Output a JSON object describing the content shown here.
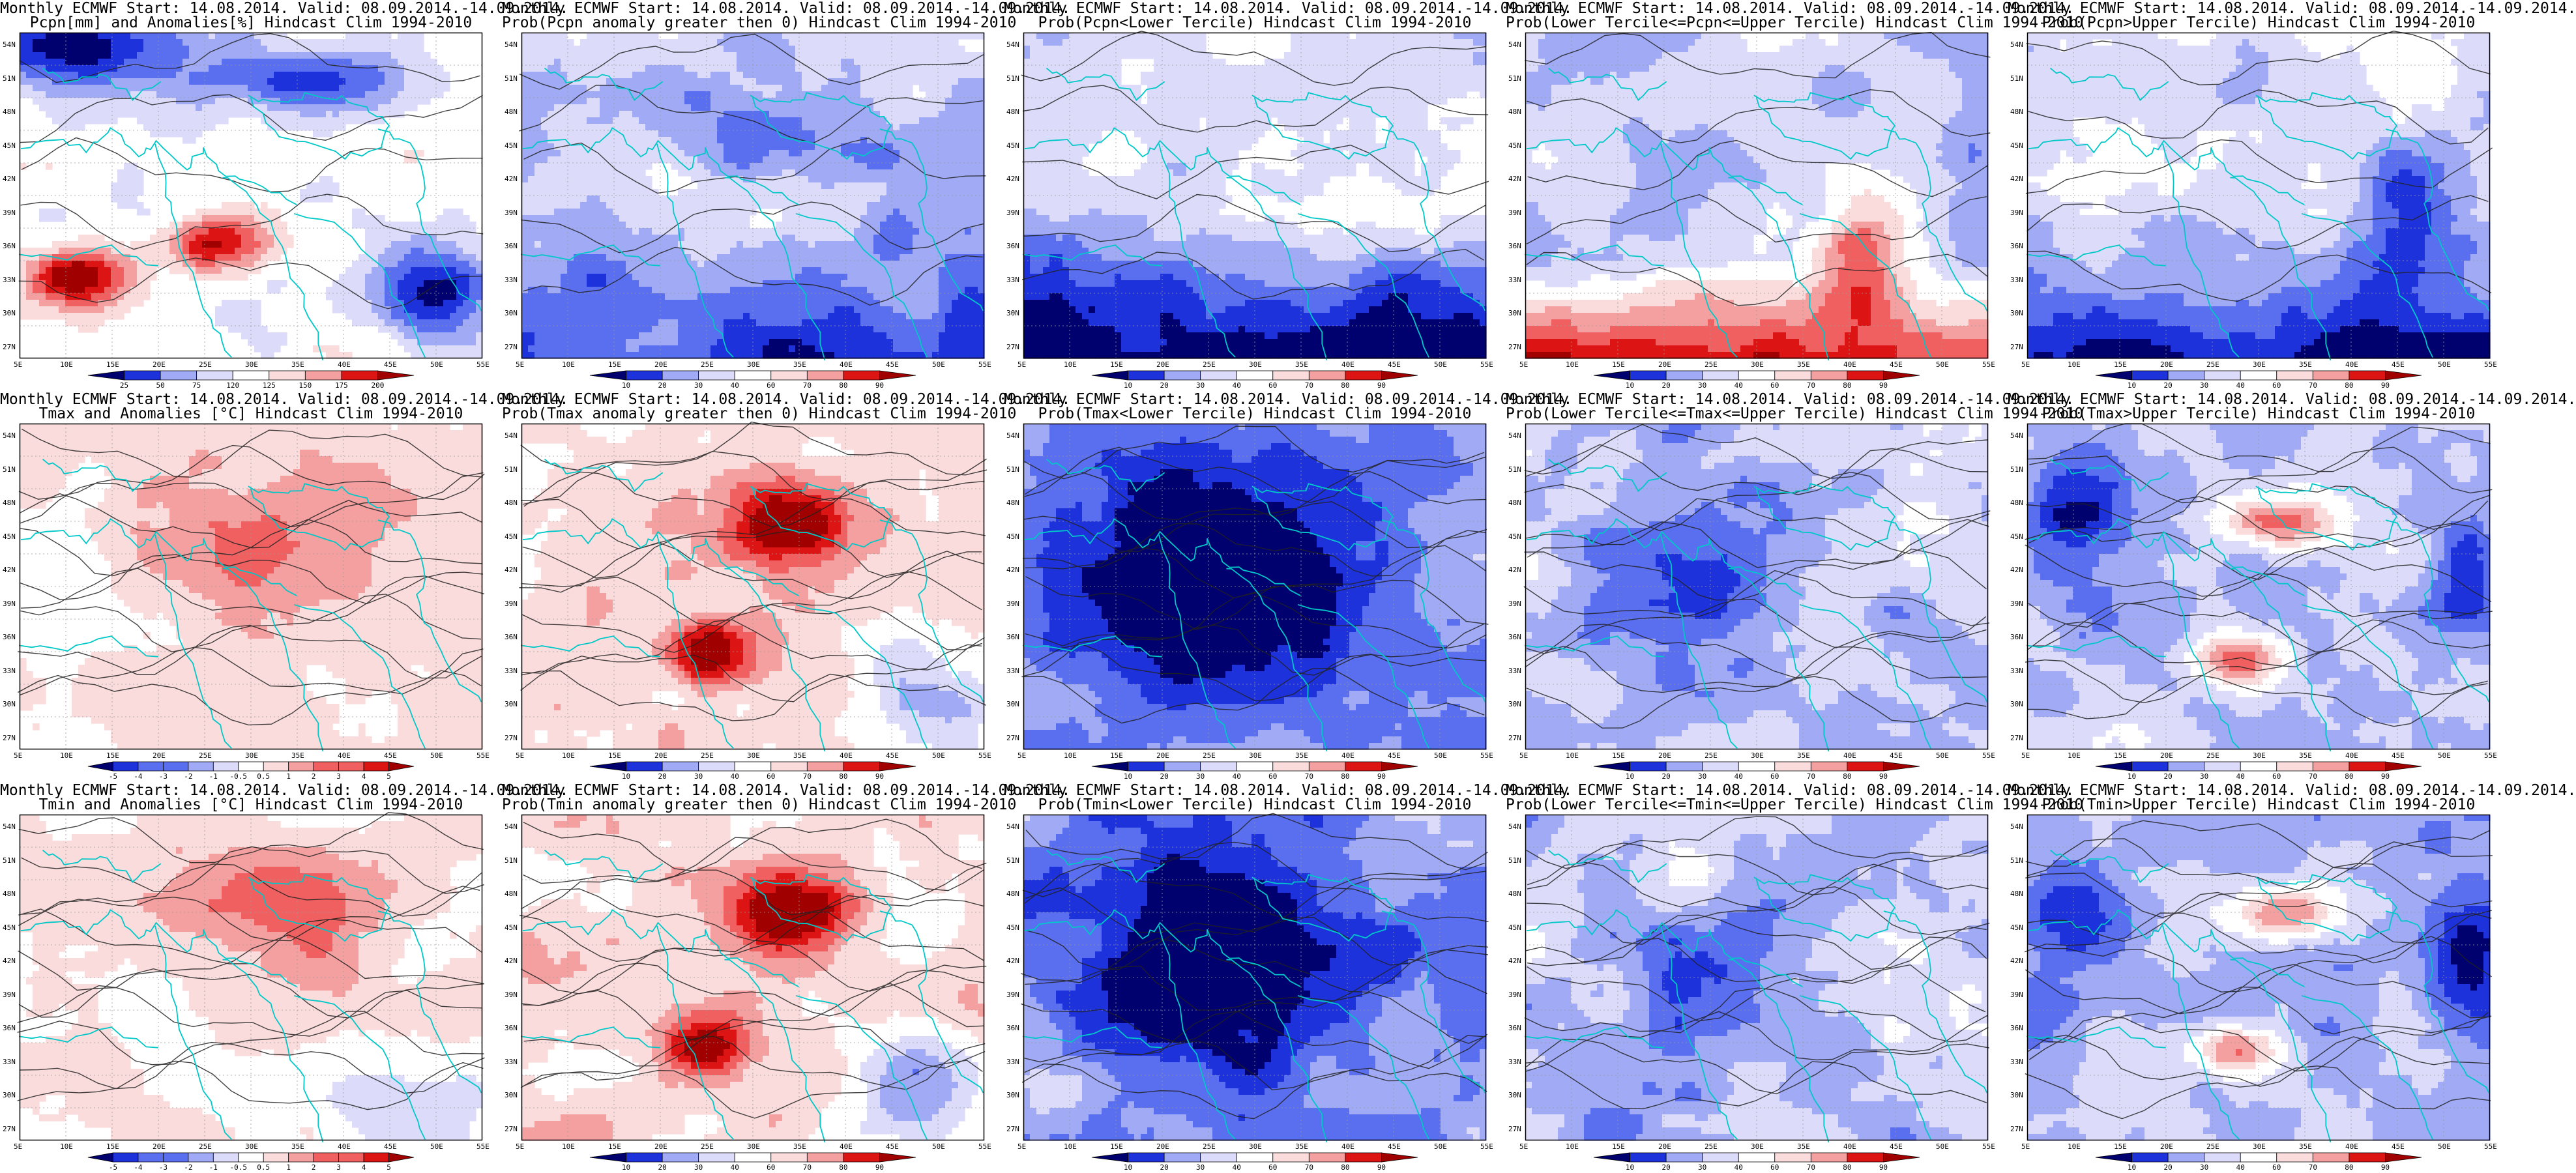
{
  "panels": [
    {
      "title1": "Monthly ECMWF Start: 14.08.2014. Valid: 08.09.2014.-14.09.2014.",
      "title2": "Pcpn[mm] and Anomalies[%] Hindcast Clim 1994-2010",
      "style": "pcpn_anom",
      "colorbar": {
        "labels": [
          "25",
          "50",
          "75",
          "120",
          "125",
          "150",
          "175",
          "200"
        ]
      }
    },
    {
      "title1": "Monthly ECMWF Start: 14.08.2014. Valid: 08.09.2014.-14.09.2014.",
      "title2": "Prob(Pcpn anomaly greater then 0) Hindcast Clim 1994-2010",
      "style": "prob_dry",
      "colorbar": {
        "labels": [
          "10",
          "20",
          "30",
          "40",
          "60",
          "70",
          "80",
          "90"
        ]
      }
    },
    {
      "title1": "Monthly ECMWF Start: 14.08.2014. Valid: 08.09.2014.-14.09.2014.",
      "title2": "Prob(Pcpn<Lower Tercile) Hindcast Clim 1994-2010",
      "style": "prob_lowblue",
      "colorbar": {
        "labels": [
          "10",
          "20",
          "30",
          "40",
          "60",
          "70",
          "80",
          "90"
        ]
      }
    },
    {
      "title1": "Monthly ECMWF Start: 14.08.2014. Valid: 08.09.2014.-14.09.2014.",
      "title2": "Prob(Lower Tercile<=Pcpn<=Upper Tercile) Hindcast Clim 1994-2010",
      "style": "prob_southred",
      "colorbar": {
        "labels": [
          "10",
          "20",
          "30",
          "40",
          "60",
          "70",
          "80",
          "90"
        ]
      }
    },
    {
      "title1": "Monthly ECMWF Start: 14.08.2014. Valid: 08.09.2014.-14.09.2014.",
      "title2": "Prob(Pcpn>Upper Tercile) Hindcast Clim 1994-2010",
      "style": "prob_southblue",
      "colorbar": {
        "labels": [
          "10",
          "20",
          "30",
          "40",
          "60",
          "70",
          "80",
          "90"
        ]
      }
    },
    {
      "title1": "Monthly ECMWF Start: 14.08.2014. Valid: 08.09.2014.-14.09.2014.",
      "title2": "Tmax and Anomalies [°C] Hindcast Clim 1994-2010",
      "style": "t_anom_tmax",
      "colorbar": {
        "labels": [
          "-5",
          "-4",
          "-3",
          "-2",
          "-1",
          "-0.5",
          "0.5",
          "1",
          "2",
          "3",
          "4",
          "5"
        ]
      }
    },
    {
      "title1": "Monthly ECMWF Start: 14.08.2014. Valid: 08.09.2014.-14.09.2014.",
      "title2": "Prob(Tmax anomaly greater then 0) Hindcast Clim 1994-2010",
      "style": "prob_warm",
      "colorbar": {
        "labels": [
          "10",
          "20",
          "30",
          "40",
          "60",
          "70",
          "80",
          "90"
        ]
      }
    },
    {
      "title1": "Monthly ECMWF Start: 14.08.2014. Valid: 08.09.2014.-14.09.2014.",
      "title2": "Prob(Tmax<Lower Tercile) Hindcast Clim 1994-2010",
      "style": "prob_cold",
      "colorbar": {
        "labels": [
          "10",
          "20",
          "30",
          "40",
          "60",
          "70",
          "80",
          "90"
        ]
      }
    },
    {
      "title1": "Monthly ECMWF Start: 14.08.2014. Valid: 08.09.2014.-14.09.2014.",
      "title2": "Prob(Lower Tercile<=Tmax<=Upper Tercile) Hindcast Clim 1994-2010",
      "style": "prob_mid",
      "colorbar": {
        "labels": [
          "10",
          "20",
          "30",
          "40",
          "60",
          "70",
          "80",
          "90"
        ]
      }
    },
    {
      "title1": "Monthly ECMWF Start: 14.08.2014. Valid: 08.09.2014.-14.09.2014.",
      "title2": "Prob(Tmax>Upper Tercile) Hindcast Clim 1994-2010",
      "style": "prob_upper",
      "colorbar": {
        "labels": [
          "10",
          "20",
          "30",
          "40",
          "60",
          "70",
          "80",
          "90"
        ]
      }
    },
    {
      "title1": "Monthly ECMWF Start: 14.08.2014. Valid: 08.09.2014.-14.09.2014.",
      "title2": "Tmin and Anomalies [°C] Hindcast Clim 1994-2010",
      "style": "t_anom_tmin",
      "colorbar": {
        "labels": [
          "-5",
          "-4",
          "-3",
          "-2",
          "-1",
          "-0.5",
          "0.5",
          "1",
          "2",
          "3",
          "4",
          "5"
        ]
      }
    },
    {
      "title1": "Monthly ECMWF Start: 14.08.2014. Valid: 08.09.2014.-14.09.2014.",
      "title2": "Prob(Tmin anomaly greater then 0) Hindcast Clim 1994-2010",
      "style": "prob_warm",
      "colorbar": {
        "labels": [
          "10",
          "20",
          "30",
          "40",
          "60",
          "70",
          "80",
          "90"
        ]
      }
    },
    {
      "title1": "Monthly ECMWF Start: 14.08.2014. Valid: 08.09.2014.-14.09.2014.",
      "title2": "Prob(Tmin<Lower Tercile) Hindcast Clim 1994-2010",
      "style": "prob_cold",
      "colorbar": {
        "labels": [
          "10",
          "20",
          "30",
          "40",
          "60",
          "70",
          "80",
          "90"
        ]
      }
    },
    {
      "title1": "Monthly ECMWF Start: 14.08.2014. Valid: 08.09.2014.-14.09.2014.",
      "title2": "Prob(Lower Tercile<=Tmin<=Upper Tercile) Hindcast Clim 1994-2010",
      "style": "prob_mid",
      "colorbar": {
        "labels": [
          "10",
          "20",
          "30",
          "40",
          "60",
          "70",
          "80",
          "90"
        ]
      }
    },
    {
      "title1": "Monthly ECMWF Start: 14.08.2014. Valid: 08.09.2014.-14.09.2014.",
      "title2": "Prob(Tmin>Upper Tercile) Hindcast Clim 1994-2010",
      "style": "prob_upper",
      "colorbar": {
        "labels": [
          "10",
          "20",
          "30",
          "40",
          "60",
          "70",
          "80",
          "90"
        ]
      }
    }
  ],
  "lon_labels": [
    "5E",
    "10E",
    "15E",
    "20E",
    "25E",
    "30E",
    "35E",
    "40E",
    "45E",
    "50E",
    "55E"
  ],
  "lat_labels": [
    "54N",
    "51N",
    "48N",
    "45N",
    "42N",
    "39N",
    "36N",
    "33N",
    "30N",
    "27N"
  ],
  "colors": {
    "coast": "#00c8c8",
    "contour": "#222222",
    "blue_scale": [
      "#00006e",
      "#1e32dc",
      "#5a6ef0",
      "#a0aaf5",
      "#dcdcfa"
    ],
    "red_scale": [
      "#fadcdc",
      "#f5a0a0",
      "#f06060",
      "#dc1414",
      "#a00000"
    ]
  }
}
